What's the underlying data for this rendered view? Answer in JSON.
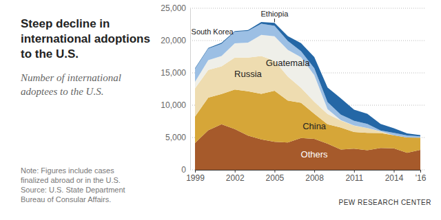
{
  "chart_data": {
    "type": "area",
    "stacked": true,
    "title": "Steep decline in international adoptions to the U.S.",
    "subtitle": "Number of international adoptees to the U.S.",
    "note": "Note: Figures include cases finalized abroad or in the U.S.",
    "source": "Source: U.S. State Department Bureau of Consular Affairs.",
    "credit": "PEW RESEARCH CENTER",
    "x": [
      1999,
      2000,
      2001,
      2002,
      2003,
      2004,
      2005,
      2006,
      2007,
      2008,
      2009,
      2010,
      2011,
      2012,
      2013,
      2014,
      2015,
      2016
    ],
    "xlim": [
      1999,
      2016
    ],
    "xticks": [
      1999,
      2002,
      2005,
      2008,
      2011,
      2014,
      {
        "value": 2016,
        "label": "'16"
      }
    ],
    "ylim": [
      0,
      25000
    ],
    "yticks": [
      0,
      {
        "value": 5000,
        "label": "5,000"
      },
      {
        "value": 10000,
        "label": "10,000"
      },
      {
        "value": 15000,
        "label": "15,000"
      },
      {
        "value": 20000,
        "label": "20,000"
      },
      {
        "value": 25000,
        "label": "25,000"
      }
    ],
    "grid": true,
    "series": [
      {
        "name": "Others",
        "color": "#a65a2b",
        "values": [
          4157,
          6128,
          7050,
          6306,
          5295,
          4706,
          4335,
          4237,
          4916,
          4774,
          4044,
          3150,
          3270,
          3024,
          3384,
          3315,
          2641,
          3079
        ]
      },
      {
        "name": "China",
        "color": "#d6a638",
        "values": [
          4101,
          5053,
          4681,
          6119,
          6859,
          7044,
          7906,
          6493,
          5453,
          3909,
          3001,
          3401,
          2587,
          2697,
          2306,
          2040,
          2354,
          1905
        ]
      },
      {
        "name": "Russia",
        "color": "#eedcb0",
        "values": [
          4348,
          4269,
          4279,
          4939,
          5209,
          5865,
          4639,
          3706,
          2310,
          1861,
          1586,
          1082,
          970,
          748,
          250,
          0,
          0,
          0
        ]
      },
      {
        "name": "Guatemala",
        "color": "#efefe9",
        "values": [
          1002,
          1518,
          1609,
          2219,
          2328,
          3264,
          3783,
          4135,
          4728,
          4122,
          756,
          51,
          32,
          4,
          23,
          0,
          0,
          0
        ]
      },
      {
        "name": "South Korea",
        "color": "#9cbfe4",
        "values": [
          2008,
          1794,
          1870,
          1779,
          1790,
          1716,
          1630,
          1376,
          939,
          1065,
          1080,
          863,
          734,
          627,
          138,
          370,
          318,
          205
        ]
      },
      {
        "name": "Ethiopia",
        "color": "#2467a6",
        "values": [
          103,
          95,
          158,
          105,
          135,
          289,
          441,
          732,
          1255,
          1725,
          2277,
          2511,
          1727,
          1568,
          993,
          716,
          335,
          183
        ]
      }
    ]
  }
}
